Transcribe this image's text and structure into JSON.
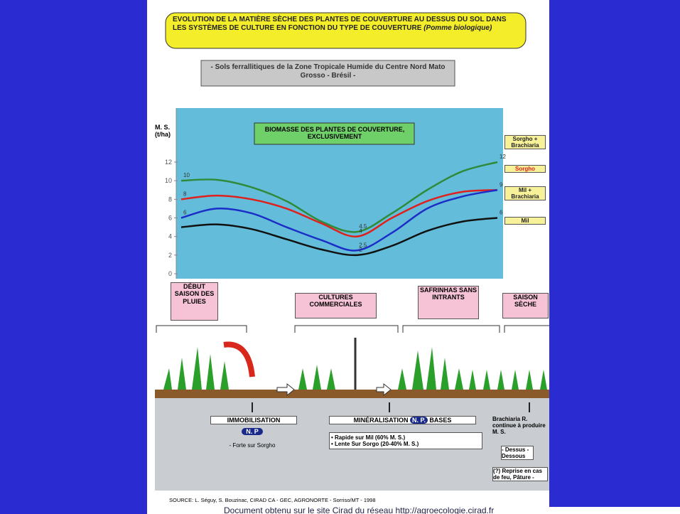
{
  "chart_data": {
    "type": "line",
    "header": {
      "title": "EVOLUTION DE LA MATIÈRE SÈCHE DES PLANTES DE COUVERTURE AU DESSUS DU SOL DANS LES SYSTÈMES DE CULTURE EN FONCTION DU TYPE DE COUVERTURE",
      "title_note": "(Pomme biologique)"
    },
    "subtitle": "- Sols ferrallitiques de la Zone Tropicale Humide du Centre Nord Mato Grosso - Brésil -",
    "y_label": "M. S. (t/ha)",
    "title": "BIOMASSE DES PLANTES DE COUVERTURE, EXCLUSIVEMENT",
    "categories": [
      null,
      null,
      null,
      null,
      null,
      null,
      null,
      null,
      null,
      null
    ],
    "ylim": [
      0,
      12
    ],
    "yticks": [
      0,
      2,
      4,
      6,
      8,
      10,
      12
    ],
    "series": [
      {
        "name": "Sorgho + Brachiaria",
        "color": "#2e8b3a",
        "values": [
          10,
          10.1,
          9.3,
          7.8,
          5.6,
          4.5,
          6.5,
          9,
          11,
          12
        ],
        "value_labels": [
          "10",
          null,
          null,
          null,
          null,
          "4.5",
          null,
          null,
          null,
          "12"
        ]
      },
      {
        "name": "Sorgho",
        "color": "#e0201c",
        "values": [
          8,
          8.4,
          8,
          7,
          5.4,
          4,
          6,
          7.8,
          8.8,
          9
        ],
        "value_labels": [
          "8",
          null,
          null,
          null,
          null,
          "4",
          null,
          null,
          null,
          null
        ]
      },
      {
        "name": "Mil + Brachiaria",
        "color": "#1c2ec8",
        "values": [
          6,
          7,
          6.5,
          5,
          3.6,
          2.5,
          4.4,
          7,
          8.3,
          9
        ],
        "value_labels": [
          "6",
          null,
          null,
          null,
          null,
          "2.5",
          null,
          null,
          null,
          "9"
        ]
      },
      {
        "name": "Mil",
        "color": "#111111",
        "values": [
          5,
          5.3,
          4.8,
          3.7,
          2.6,
          2,
          3,
          4.6,
          5.6,
          6
        ],
        "value_labels": [
          null,
          null,
          null,
          null,
          null,
          "2",
          null,
          null,
          null,
          "6"
        ]
      }
    ]
  },
  "phases": [
    "DÉBUT SAISON DES PLUIES",
    "CULTURES COMMERCIALES",
    "SAFRINHAS SANS INTRANTS",
    "SAISON SÈCHE"
  ],
  "processes": {
    "immobilisation": "IMMOBILISATION",
    "immobilisation_np": "N. P",
    "immobilisation_note": "- Forte sur Sorgho",
    "mineralisation": "MINÉRALISATION",
    "mineralisation_np": "N. P.",
    "mineralisation_bases": "BASES",
    "rapide": "• Rapide sur Mil (60% M. S.)",
    "lente": "• Lente Sur Sorgo (20-40% M. S.)",
    "brachiaria": "Brachiaria R. continue à produire M. S.",
    "dessus": "- Dessus - Dessous",
    "reprise": "(?) Reprise en cas de feu, Pâture -"
  },
  "source": "SOURCE: L. Séguy, S. Bouzinac, CIRAD CA - GEC, AGRONORTE - Sorriso/MT - 1998",
  "caption": "Document obtenu sur le site Cirad du réseau http://agroecologie.cirad.fr"
}
